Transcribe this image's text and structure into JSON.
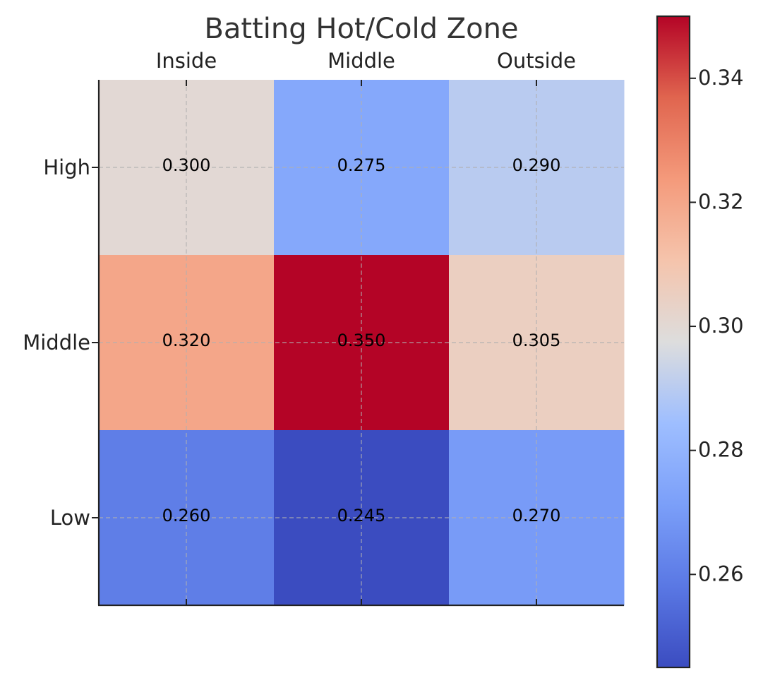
{
  "chart_data": {
    "type": "heatmap",
    "title": "Batting Hot/Cold Zone",
    "columns": [
      "Inside",
      "Middle",
      "Outside"
    ],
    "rows": [
      "High",
      "Middle",
      "Low"
    ],
    "values": [
      [
        0.3,
        0.275,
        0.29
      ],
      [
        0.32,
        0.35,
        0.305
      ],
      [
        0.26,
        0.245,
        0.27
      ]
    ],
    "value_format": "3-decimals",
    "colormap": "coolwarm",
    "colorbar": {
      "range": [
        0.245,
        0.35
      ],
      "ticks": [
        0.26,
        0.28,
        0.3,
        0.32,
        0.34
      ],
      "tick_labels": [
        "0.26",
        "0.28",
        "0.30",
        "0.32",
        "0.34"
      ]
    },
    "grid": true,
    "x_tick_position": "top"
  }
}
